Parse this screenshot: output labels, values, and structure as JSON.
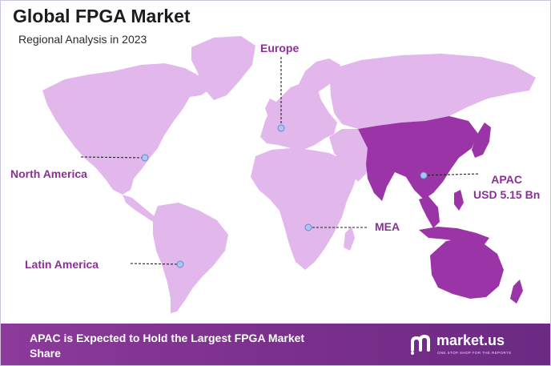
{
  "title": "Global FPGA Market",
  "subtitle": "Regional Analysis in 2023",
  "regions": {
    "europe": "Europe",
    "north_america": "North America",
    "apac_name": "APAC",
    "apac_value": "USD 5.15 Bn",
    "mea": "MEA",
    "latin_america": "Latin America"
  },
  "highlighted_region": "APAC",
  "colors": {
    "land": "#e2b8ec",
    "highlight": "#9b34a6",
    "label": "#8b2f97",
    "footer": "#8c3a9b",
    "marker": "#a9c7f0"
  },
  "footer": {
    "headline": "APAC is Expected to Hold the Largest FPGA Market Share"
  },
  "brand": {
    "name": "market.us",
    "tagline": "ONE STOP SHOP FOR THE REPORTS",
    "logo_icon": "market-us-logo-icon"
  }
}
